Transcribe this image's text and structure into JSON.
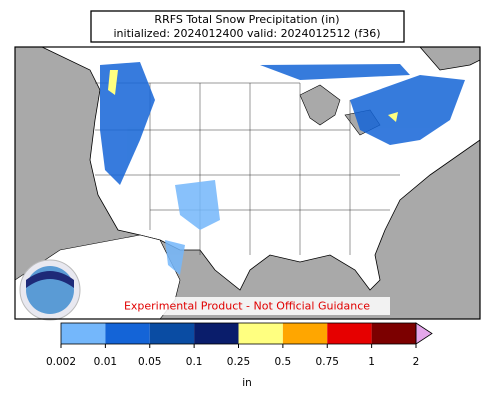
{
  "title": [
    "RRFS Total Snow Precipitation (in)",
    "initialized: 2024012400 valid: 2024012512 (f36)"
  ],
  "notice": "Experimental Product - Not Official Guidance",
  "colorbar": {
    "ticks": [
      0.002,
      0.01,
      0.05,
      0.1,
      0.25,
      0.5,
      0.75,
      1,
      2
    ],
    "colors": [
      "#74b7fb",
      "#1464d7",
      "#0a4ca3",
      "#0a1d6b",
      "#ffff80",
      "#ffa600",
      "#e60000",
      "#7c0000"
    ],
    "extend_color": "#e4a6ea",
    "label": "in"
  }
}
